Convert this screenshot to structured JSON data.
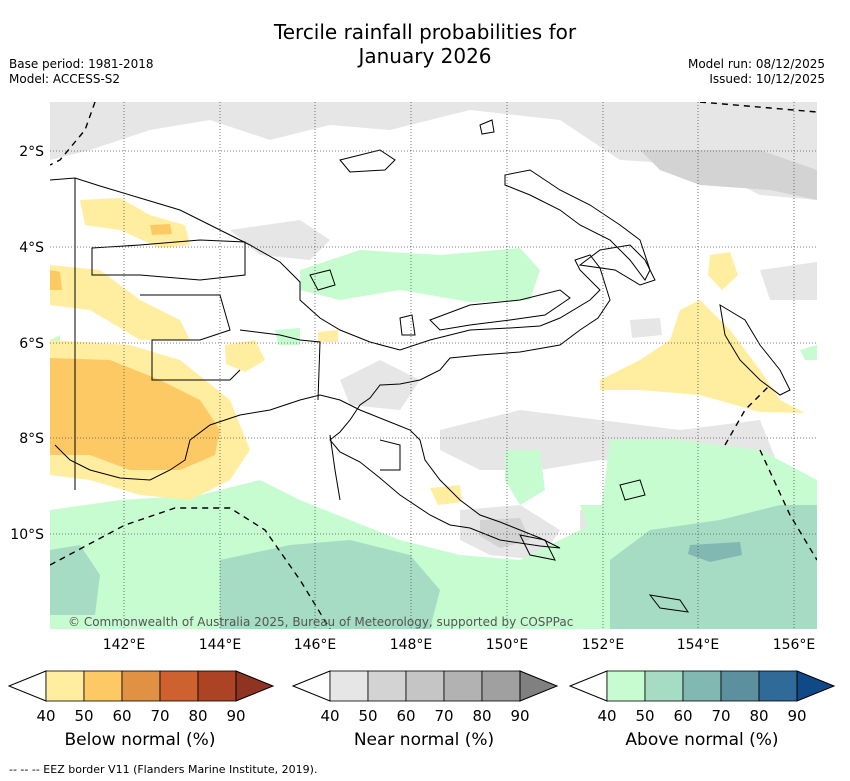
{
  "title_line1": "Tercile rainfall probabilities for",
  "title_line2": "January 2026",
  "meta_left": [
    "Base period: 1981-2018",
    "Model: ACCESS-S2"
  ],
  "meta_right": [
    "Model run: 08/12/2025",
    "Issued: 10/12/2025"
  ],
  "credit": "© Commonwealth of Australia 2025, Bureau of Meteorology, supported by COSPPac",
  "lat_labels": [
    "2°S",
    "4°S",
    "6°S",
    "8°S",
    "10°S"
  ],
  "lon_labels": [
    "142°E",
    "144°E",
    "146°E",
    "148°E",
    "150°E",
    "152°E",
    "154°E",
    "156°E"
  ],
  "legends": [
    {
      "title": "Below normal (%)",
      "ticks": [
        "40",
        "50",
        "60",
        "70",
        "80",
        "90"
      ],
      "colors": [
        "#ffeda0",
        "#fdc965",
        "#e09143",
        "#cd6130",
        "#ad4325",
        "#8f3420"
      ]
    },
    {
      "title": "Near normal (%)",
      "ticks": [
        "40",
        "50",
        "60",
        "70",
        "80",
        "90"
      ],
      "colors": [
        "#e6e6e6",
        "#d3d3d3",
        "#c5c5c5",
        "#b2b2b2",
        "#a0a0a0",
        "#808080"
      ]
    },
    {
      "title": "Above normal (%)",
      "ticks": [
        "40",
        "50",
        "60",
        "70",
        "80",
        "90"
      ],
      "colors": [
        "#c7fcd0",
        "#a6dcc4",
        "#82b8b2",
        "#5c909e",
        "#2f6a98",
        "#0f4a86"
      ]
    }
  ],
  "eez_note": "--  --  -- EEZ border V11 (Flanders Marine Institute, 2019)."
}
